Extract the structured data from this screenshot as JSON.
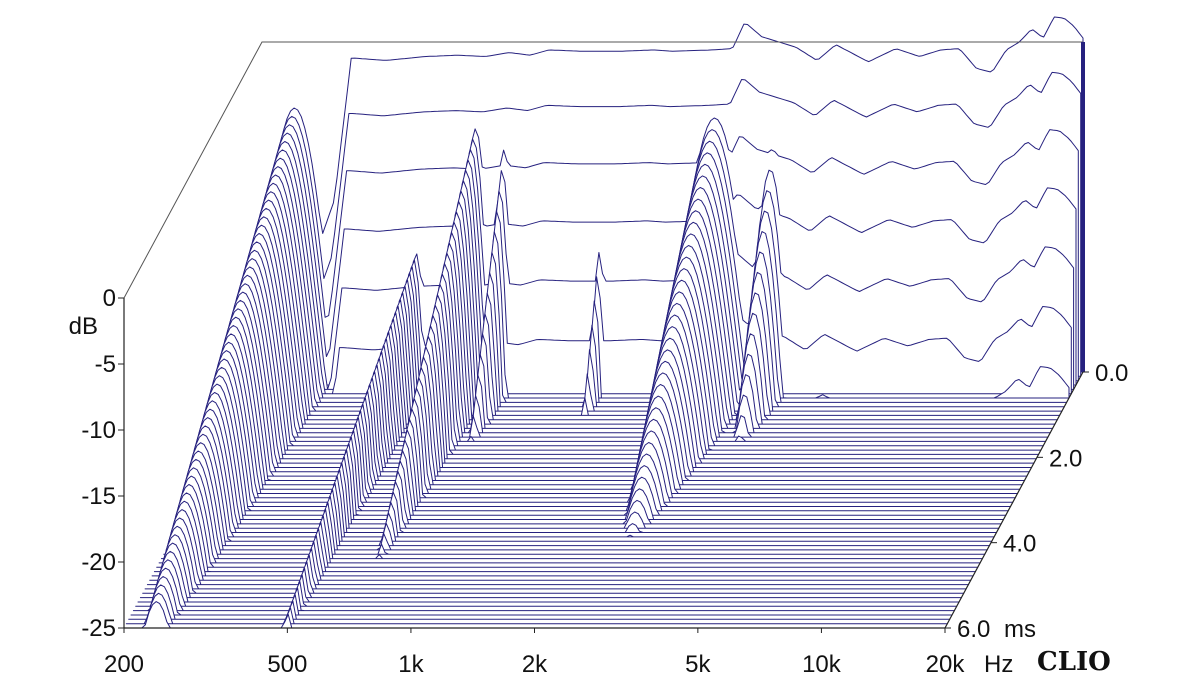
{
  "chart_data": {
    "type": "area",
    "subtype": "cumulative-spectral-decay-waterfall",
    "brand": "CLIO",
    "colors": {
      "trace": "#26217f",
      "fill": "#ffffff",
      "frame": "#555555"
    },
    "x_axis": {
      "scale": "log",
      "range": [
        200,
        20000
      ],
      "unit": "Hz",
      "ticks": [
        {
          "value": 200,
          "label": "200"
        },
        {
          "value": 500,
          "label": "500"
        },
        {
          "value": 1000,
          "label": "1k"
        },
        {
          "value": 2000,
          "label": "2k"
        },
        {
          "value": 5000,
          "label": "5k"
        },
        {
          "value": 10000,
          "label": "10k"
        },
        {
          "value": 20000,
          "label": "20k"
        }
      ]
    },
    "y_axis": {
      "unit": "dB",
      "range": [
        -25,
        0
      ],
      "ticks": [
        {
          "value": 0,
          "label": "0"
        },
        {
          "value": -5,
          "label": "-5"
        },
        {
          "value": -10,
          "label": "-10"
        },
        {
          "value": -15,
          "label": "-15"
        },
        {
          "value": -20,
          "label": "-20"
        },
        {
          "value": -25,
          "label": "-25"
        }
      ]
    },
    "z_axis": {
      "unit": "ms",
      "range": [
        0,
        6
      ],
      "ticks": [
        {
          "value": 0,
          "label": "0.0"
        },
        {
          "value": 2,
          "label": "2.0"
        },
        {
          "value": 4,
          "label": "4.0"
        },
        {
          "value": 6,
          "label": "6.0"
        }
      ]
    },
    "slices": 60,
    "initial_response": {
      "x": [
        200,
        250,
        300,
        330,
        400,
        500,
        600,
        700,
        800,
        900,
        1000,
        1200,
        1500,
        1800,
        2000,
        2500,
        2800,
        3000,
        3300,
        4000,
        4500,
        5000,
        6000,
        7000,
        8000,
        9000,
        10000,
        11000,
        12000,
        13000,
        14000,
        15000,
        16000,
        17000,
        18000,
        19000,
        20000
      ],
      "y": [
        -24,
        -19,
        -12,
        -1.2,
        -1.4,
        -1.1,
        -1.0,
        -1.1,
        -0.8,
        -1.0,
        -0.6,
        -0.7,
        -0.7,
        -0.6,
        -0.7,
        -0.6,
        -0.5,
        1.5,
        0.4,
        -0.4,
        -1.4,
        -0.2,
        -1.5,
        -0.5,
        -1.1,
        -0.6,
        -0.5,
        -2.0,
        -2.3,
        -0.6,
        0.0,
        1.0,
        0.3,
        1.9,
        1.8,
        1.2,
        0.3
      ]
    },
    "resonances": [
      {
        "f": 240,
        "decay_ms": 6,
        "level_db": -5,
        "width_oct": 0.3
      },
      {
        "f": 500,
        "decay_ms": 6,
        "level_db": -14,
        "width_oct": 0.12
      },
      {
        "f": 680,
        "decay_ms": 4,
        "level_db": -5,
        "width_oct": 0.14
      },
      {
        "f": 800,
        "decay_ms": 1.5,
        "level_db": -5,
        "width_oct": 0.1
      },
      {
        "f": 1400,
        "decay_ms": 1,
        "level_db": -8.5,
        "width_oct": 0.08
      },
      {
        "f": 2600,
        "decay_ms": 3.5,
        "level_db": -4,
        "width_oct": 0.32
      },
      {
        "f": 3600,
        "decay_ms": 1.5,
        "level_db": -5,
        "width_oct": 0.18
      },
      {
        "f": 13000,
        "decay_ms": 0.5,
        "level_db": -2,
        "width_oct": 0.25
      }
    ]
  }
}
